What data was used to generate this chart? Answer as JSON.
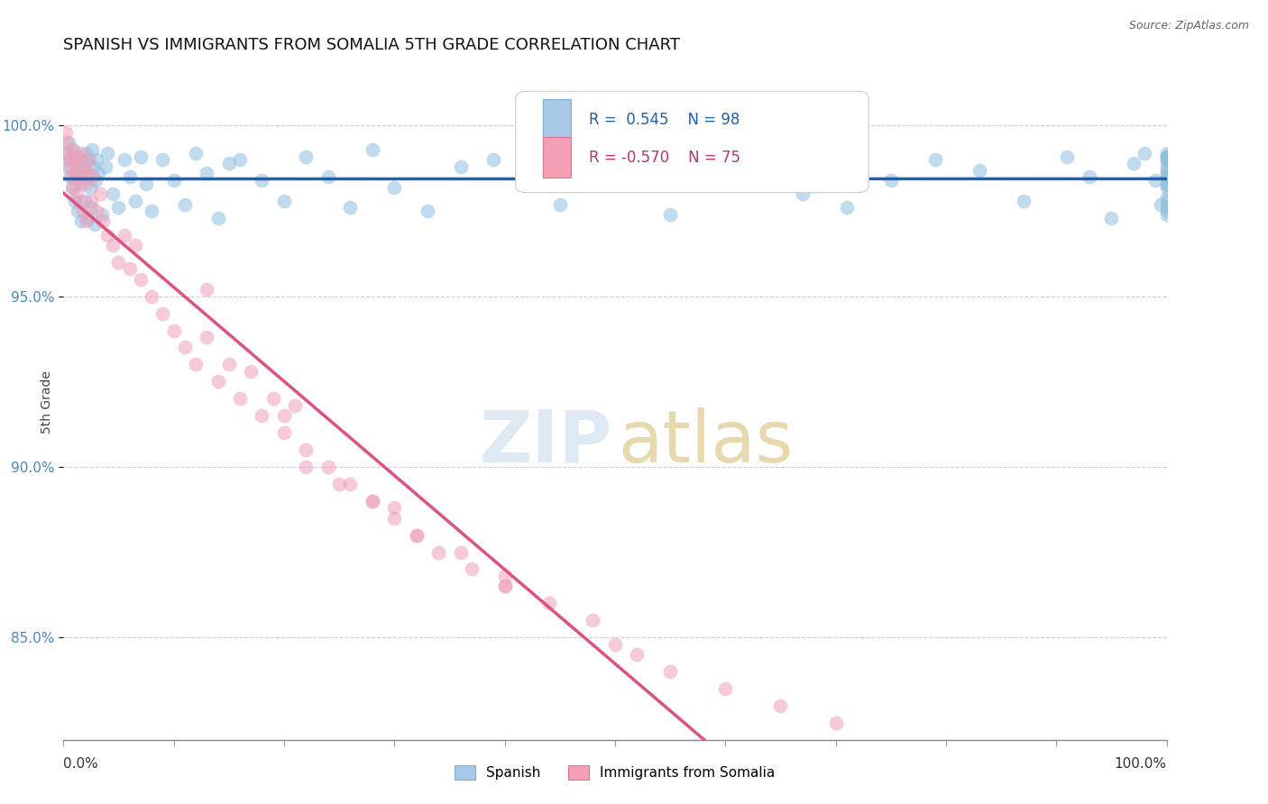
{
  "title": "SPANISH VS IMMIGRANTS FROM SOMALIA 5TH GRADE CORRELATION CHART",
  "source": "Source: ZipAtlas.com",
  "ylabel": "5th Grade",
  "y_ticks": [
    85.0,
    90.0,
    95.0,
    100.0
  ],
  "y_tick_labels": [
    "85.0%",
    "90.0%",
    "95.0%",
    "100.0%"
  ],
  "xmin": 0.0,
  "xmax": 100.0,
  "ymin": 82.0,
  "ymax": 101.8,
  "watermark_zip": "ZIP",
  "watermark_atlas": "atlas",
  "series": [
    {
      "name": "Spanish",
      "color": "#8fbfe0",
      "R": 0.545,
      "N": 98,
      "trend_color": "#2060b0",
      "trend_style": "solid"
    },
    {
      "name": "Immigrants from Somalia",
      "color": "#f0a0b8",
      "R": -0.57,
      "N": 75,
      "trend_color": "#e05080",
      "trend_style": "solid"
    }
  ],
  "spanish_x": [
    0.3,
    0.4,
    0.5,
    0.6,
    0.7,
    0.8,
    0.9,
    1.0,
    1.1,
    1.2,
    1.3,
    1.4,
    1.5,
    1.6,
    1.7,
    1.8,
    1.9,
    2.0,
    2.1,
    2.2,
    2.3,
    2.4,
    2.5,
    2.6,
    2.7,
    2.8,
    2.9,
    3.0,
    3.2,
    3.5,
    3.8,
    4.0,
    4.5,
    5.0,
    5.5,
    6.0,
    6.5,
    7.0,
    7.5,
    8.0,
    9.0,
    10.0,
    11.0,
    12.0,
    13.0,
    14.0,
    15.0,
    16.0,
    18.0,
    20.0,
    22.0,
    24.0,
    26.0,
    28.0,
    30.0,
    33.0,
    36.0,
    39.0,
    42.0,
    45.0,
    48.0,
    51.0,
    55.0,
    59.0,
    63.0,
    67.0,
    71.0,
    75.0,
    79.0,
    83.0,
    87.0,
    91.0,
    93.0,
    95.0,
    97.0,
    98.0,
    99.0,
    99.5,
    100.0,
    100.0,
    100.0,
    100.0,
    100.0,
    100.0,
    100.0,
    100.0,
    100.0,
    100.0,
    100.0,
    100.0,
    100.0,
    100.0,
    100.0,
    100.0,
    100.0,
    100.0,
    100.0,
    100.0
  ],
  "spanish_y": [
    99.2,
    98.8,
    99.5,
    98.5,
    99.0,
    98.2,
    99.3,
    97.8,
    98.6,
    99.1,
    97.5,
    98.9,
    98.3,
    97.2,
    99.0,
    98.7,
    97.8,
    99.2,
    98.5,
    97.3,
    99.0,
    98.2,
    97.6,
    99.3,
    98.8,
    97.1,
    98.4,
    99.0,
    98.6,
    97.4,
    98.8,
    99.2,
    98.0,
    97.6,
    99.0,
    98.5,
    97.8,
    99.1,
    98.3,
    97.5,
    99.0,
    98.4,
    97.7,
    99.2,
    98.6,
    97.3,
    98.9,
    99.0,
    98.4,
    97.8,
    99.1,
    98.5,
    97.6,
    99.3,
    98.2,
    97.5,
    98.8,
    99.0,
    98.3,
    97.7,
    99.1,
    98.6,
    97.4,
    98.9,
    99.2,
    98.0,
    97.6,
    98.4,
    99.0,
    98.7,
    97.8,
    99.1,
    98.5,
    97.3,
    98.9,
    99.2,
    98.4,
    97.7,
    99.0,
    98.6,
    97.5,
    99.1,
    98.3,
    97.8,
    99.2,
    98.5,
    97.4,
    98.8,
    99.0,
    98.3,
    97.6,
    99.1,
    98.7,
    97.9,
    98.5,
    99.0,
    98.2,
    99.1
  ],
  "somalia_x": [
    0.2,
    0.3,
    0.4,
    0.5,
    0.6,
    0.7,
    0.8,
    0.9,
    1.0,
    1.1,
    1.2,
    1.3,
    1.4,
    1.5,
    1.6,
    1.7,
    1.8,
    1.9,
    2.0,
    2.1,
    2.2,
    2.3,
    2.5,
    2.7,
    3.0,
    3.3,
    3.6,
    4.0,
    4.5,
    5.0,
    5.5,
    6.0,
    6.5,
    7.0,
    8.0,
    9.0,
    10.0,
    11.0,
    12.0,
    13.0,
    14.0,
    15.0,
    16.0,
    17.0,
    18.0,
    19.0,
    20.0,
    21.0,
    22.0,
    24.0,
    26.0,
    28.0,
    30.0,
    32.0,
    34.0,
    37.0,
    40.0,
    13.0,
    20.0,
    30.0,
    40.0,
    50.0,
    55.0,
    60.0,
    65.0,
    70.0,
    22.0,
    25.0,
    28.0,
    32.0,
    36.0,
    40.0,
    44.0,
    48.0,
    52.0
  ],
  "somalia_y": [
    99.8,
    99.5,
    99.2,
    99.0,
    98.8,
    98.5,
    99.3,
    98.2,
    99.0,
    98.7,
    98.0,
    99.1,
    98.4,
    97.8,
    99.2,
    98.5,
    97.5,
    98.8,
    98.3,
    97.2,
    98.6,
    99.0,
    97.8,
    98.5,
    97.5,
    98.0,
    97.2,
    96.8,
    96.5,
    96.0,
    96.8,
    95.8,
    96.5,
    95.5,
    95.0,
    94.5,
    94.0,
    93.5,
    93.0,
    93.8,
    92.5,
    93.0,
    92.0,
    92.8,
    91.5,
    92.0,
    91.0,
    91.8,
    90.5,
    90.0,
    89.5,
    89.0,
    88.5,
    88.0,
    87.5,
    87.0,
    86.5,
    95.2,
    91.5,
    88.8,
    86.8,
    84.8,
    84.0,
    83.5,
    83.0,
    82.5,
    90.0,
    89.5,
    89.0,
    88.0,
    87.5,
    86.5,
    86.0,
    85.5,
    84.5
  ]
}
